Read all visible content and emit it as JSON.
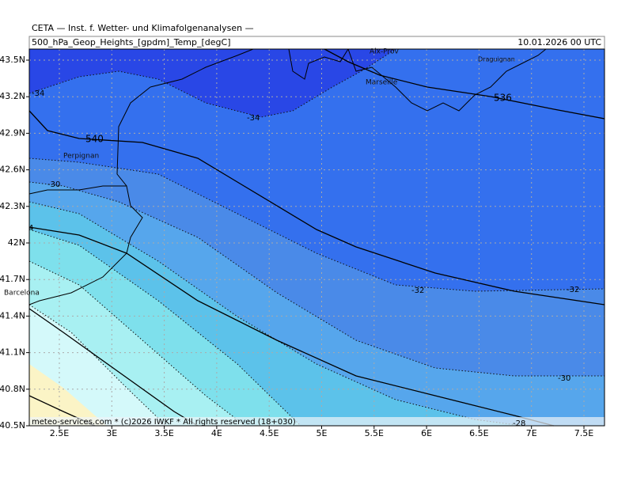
{
  "header": {
    "title": "CETA — Inst. f. Wetter- und Klimafolgenanalysen —",
    "subtitle": "500_hPa_Geop_Heights_[gpdm]_Temp_[degC]",
    "valid_time": "10.01.2026 00 UTC"
  },
  "axes": {
    "lat": [
      {
        "value": 43.5,
        "label": "43.5N"
      },
      {
        "value": 43.2,
        "label": "43.2N"
      },
      {
        "value": 42.9,
        "label": "42.9N"
      },
      {
        "value": 42.6,
        "label": "42.6N"
      },
      {
        "value": 42.3,
        "label": "42.3N"
      },
      {
        "value": 42,
        "label": "42N"
      },
      {
        "value": 41.7,
        "label": "41.7N"
      },
      {
        "value": 41.4,
        "label": "41.4N"
      },
      {
        "value": 41.1,
        "label": "41.1N"
      },
      {
        "value": 40.8,
        "label": "40.8N"
      },
      {
        "value": 40.5,
        "label": "40.5N"
      }
    ],
    "lon": [
      {
        "value": 2.5,
        "label": "2.5E"
      },
      {
        "value": 3,
        "label": "3E"
      },
      {
        "value": 3.5,
        "label": "3.5E"
      },
      {
        "value": 4,
        "label": "4E"
      },
      {
        "value": 4.5,
        "label": "4.5E"
      },
      {
        "value": 5,
        "label": "5E"
      },
      {
        "value": 5.5,
        "label": "5.5E"
      },
      {
        "value": 6,
        "label": "6E"
      },
      {
        "value": 6.5,
        "label": "6.5E"
      },
      {
        "value": 7,
        "label": "7E"
      },
      {
        "value": 7.5,
        "label": "7.5E"
      }
    ]
  },
  "places": [
    "Perpignan",
    "Marseille",
    "Barcelona",
    "Draguignan",
    "Aix-Prov"
  ],
  "contour_labels": [
    "-34",
    "-34",
    "540",
    "-30",
    "-32",
    "-32",
    "536",
    "-30",
    "-28",
    "4"
  ],
  "footer": "meteo-services.com * (c)2026 IWKF * All rights reserved (18+030)"
}
